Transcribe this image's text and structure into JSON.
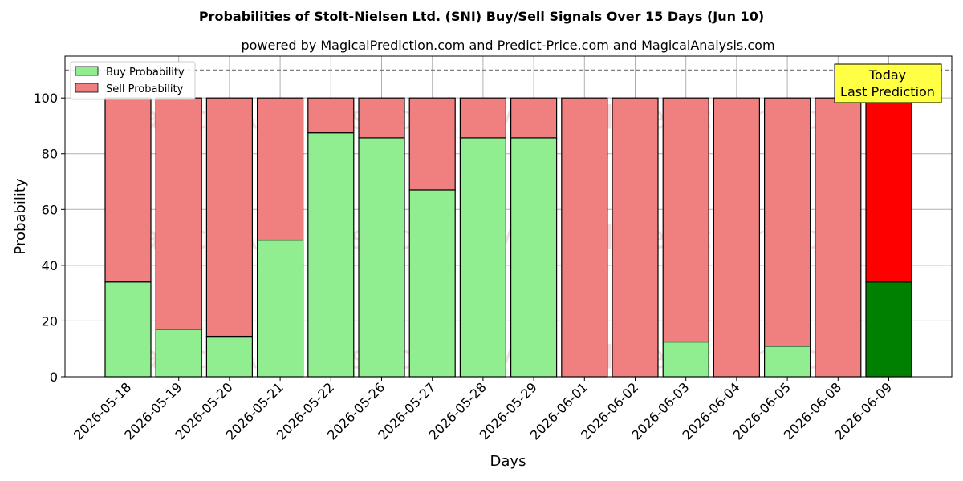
{
  "chart_data": {
    "type": "bar",
    "stacked": true,
    "title": "Probabilities of Stolt-Nielsen Ltd. (SNI) Buy/Sell Signals Over 15 Days (Jun 10)",
    "subtitle": "powered by MagicalPrediction.com and Predict-Price.com and MagicalAnalysis.com",
    "xlabel": "Days",
    "ylabel": "Probability",
    "ylim": [
      0,
      115
    ],
    "yticks": [
      0,
      20,
      40,
      60,
      80,
      100
    ],
    "reference_line": 110,
    "grid": true,
    "legend_position": "top-left",
    "categories": [
      "2026-05-18",
      "2026-05-19",
      "2026-05-20",
      "2026-05-21",
      "2026-05-22",
      "2026-05-26",
      "2026-05-27",
      "2026-05-28",
      "2026-05-29",
      "2026-06-01",
      "2026-06-02",
      "2026-06-03",
      "2026-06-04",
      "2026-06-05",
      "2026-06-08",
      "2026-06-09"
    ],
    "series": [
      {
        "name": "Buy Probability",
        "color": "#90ee90",
        "highlight_color": "#008000",
        "values": [
          34,
          17,
          14.5,
          49,
          87.5,
          85.7,
          67,
          85.7,
          85.7,
          0,
          0,
          12.5,
          0,
          11,
          0,
          34
        ]
      },
      {
        "name": "Sell Probability",
        "color": "#f08080",
        "highlight_color": "#ff0000",
        "values": [
          66,
          83,
          85.5,
          51,
          12.5,
          14.3,
          33,
          14.3,
          14.3,
          100,
          100,
          87.5,
          100,
          89,
          100,
          66
        ]
      }
    ],
    "highlight_index": 15,
    "annotation": {
      "line1": "Today",
      "line2": "Last Prediction",
      "color": "#ffff44"
    },
    "watermarks": [
      "MagicalAnalysis.com",
      "MagicalPrediction.com"
    ]
  }
}
